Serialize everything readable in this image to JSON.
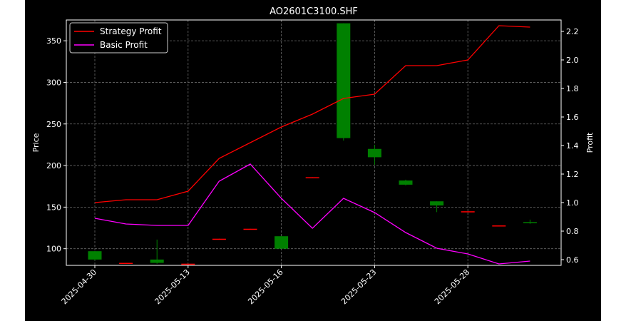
{
  "chart_data": {
    "type": "candlestick+line",
    "title": "AO2601C3100.SHF",
    "ylabel_left": "Price",
    "ylabel_right": "Profit",
    "ylim_left": [
      80,
      375
    ],
    "ylim_right": [
      0.56,
      2.28
    ],
    "yticks_left": [
      "100",
      "150",
      "200",
      "250",
      "300",
      "350"
    ],
    "yticks_right": [
      "0.6",
      "0.8",
      "1.0",
      "1.2",
      "1.4",
      "1.6",
      "1.8",
      "2.0",
      "2.2"
    ],
    "xtick_labels": [
      "2025-04-30",
      "2025-05-13",
      "2025-05-16",
      "2025-05-23",
      "2025-05-28"
    ],
    "xtick_index": [
      0,
      3,
      6,
      9,
      12
    ],
    "grid": true,
    "legend_position": "top-left",
    "colors": {
      "background": "#000000",
      "figure_bg": "#ffffff",
      "text": "#ffffff",
      "grid": "#6a6a6a",
      "up": "#008000",
      "down": "#ff0000",
      "strategy": "#ff0000",
      "basic": "#ff00ff"
    },
    "candles": [
      {
        "o": 87,
        "h": 97,
        "l": 86,
        "c": 97
      },
      {
        "o": 83,
        "h": 83,
        "l": 82,
        "c": 82
      },
      {
        "o": 83,
        "h": 111,
        "l": 82,
        "c": 87
      },
      {
        "o": 82,
        "h": 82,
        "l": 81,
        "c": 81
      },
      {
        "o": 112,
        "h": 112,
        "l": 111,
        "c": 111
      },
      {
        "o": 124,
        "h": 124,
        "l": 123,
        "c": 123
      },
      {
        "o": 100,
        "h": 115,
        "l": 100,
        "c": 115
      },
      {
        "o": 186,
        "h": 186,
        "l": 185,
        "c": 185
      },
      {
        "o": 233,
        "h": 371,
        "l": 230,
        "c": 371
      },
      {
        "o": 210,
        "h": 225,
        "l": 201,
        "c": 220
      },
      {
        "o": 177,
        "h": 183,
        "l": 176,
        "c": 182
      },
      {
        "o": 152,
        "h": 157,
        "l": 144,
        "c": 157
      },
      {
        "o": 145,
        "h": 145,
        "l": 144,
        "c": 144
      },
      {
        "o": 128,
        "h": 128,
        "l": 127,
        "c": 127
      },
      {
        "o": 131,
        "h": 135,
        "l": 130,
        "c": 132
      }
    ],
    "series": [
      {
        "name": "Strategy Profit",
        "values": [
          1.0,
          1.02,
          1.02,
          1.08,
          1.31,
          1.42,
          1.53,
          1.62,
          1.73,
          1.76,
          1.96,
          1.96,
          2.0,
          2.24,
          2.23
        ]
      },
      {
        "name": "Basic Profit",
        "values": [
          0.89,
          0.85,
          0.84,
          0.84,
          1.15,
          1.27,
          1.03,
          0.82,
          1.03,
          0.93,
          0.79,
          0.68,
          0.64,
          0.57,
          0.59
        ]
      }
    ]
  }
}
